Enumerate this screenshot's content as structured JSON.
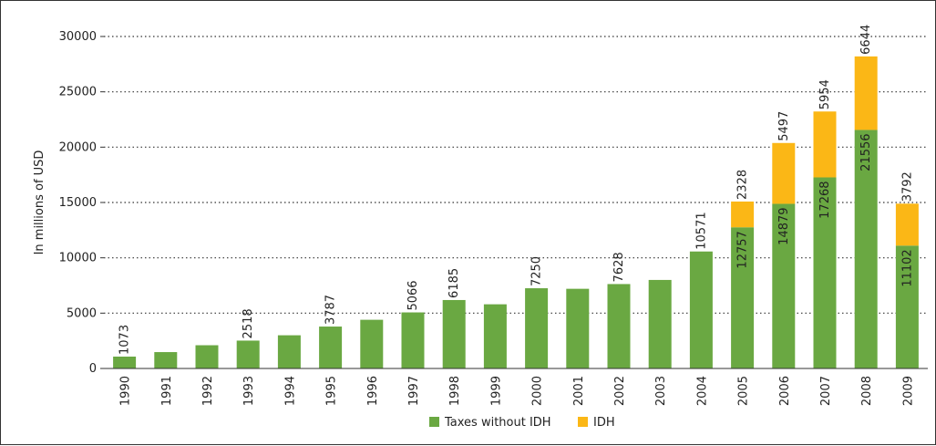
{
  "chart_data": {
    "type": "bar",
    "stacked": true,
    "ylabel": "In millions of USD",
    "xlabel": "",
    "ylim": [
      0,
      30000
    ],
    "yticks": [
      0,
      5000,
      10000,
      15000,
      20000,
      25000,
      30000
    ],
    "grid": "dotted horizontal",
    "legend_position": "bottom-center",
    "categories": [
      "1990",
      "1991",
      "1992",
      "1993",
      "1994",
      "1995",
      "1996",
      "1997",
      "1998",
      "1999",
      "2000",
      "2001",
      "2002",
      "2003",
      "2004",
      "2005",
      "2006",
      "2007",
      "2008",
      "2009"
    ],
    "series": [
      {
        "name": "Taxes without IDH",
        "color": "#6aa842",
        "values": [
          1073,
          1480,
          2100,
          2518,
          3000,
          3787,
          4400,
          5066,
          6185,
          5800,
          7250,
          7200,
          7628,
          8000,
          10571,
          12757,
          14879,
          17268,
          21556,
          11102
        ],
        "labels": [
          "1073",
          null,
          null,
          "2518",
          null,
          "3787",
          null,
          "5066",
          "6185",
          null,
          "7250",
          null,
          "7628",
          null,
          "10571",
          "12757",
          "14879",
          "17268",
          "21556",
          "11102"
        ]
      },
      {
        "name": "IDH",
        "color": "#fbb716",
        "values": [
          0,
          0,
          0,
          0,
          0,
          0,
          0,
          0,
          0,
          0,
          0,
          0,
          0,
          0,
          0,
          2328,
          5497,
          5954,
          6644,
          3792
        ],
        "labels": [
          null,
          null,
          null,
          null,
          null,
          null,
          null,
          null,
          null,
          null,
          null,
          null,
          null,
          null,
          null,
          "2328",
          "5497",
          "5954",
          "6644",
          "3792"
        ]
      }
    ]
  }
}
